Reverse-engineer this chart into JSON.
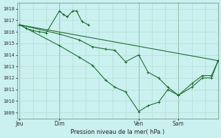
{
  "xlabel": "Pression niveau de la mer( hPa )",
  "ylim": [
    1008.5,
    1018.5
  ],
  "yticks": [
    1009,
    1010,
    1011,
    1012,
    1013,
    1014,
    1015,
    1016,
    1017,
    1018
  ],
  "bg_color": "#caf0f0",
  "grid_color": "#b0d8cc",
  "line_color": "#1a6b2a",
  "axis_color": "#5a8a6a",
  "x_tick_labels": [
    "Jeu",
    "Dim",
    "Ven",
    "Sam"
  ],
  "x_tick_positions": [
    0,
    30,
    90,
    120
  ],
  "x_vlines": [
    0,
    30,
    90,
    120
  ],
  "xlim": [
    -2,
    150
  ],
  "series1_x": [
    0,
    5,
    10,
    15,
    20,
    30,
    33,
    36,
    40,
    43,
    47,
    52
  ],
  "series1_y": [
    1016.6,
    1016.3,
    1016.1,
    1016.0,
    1015.9,
    1017.8,
    1017.5,
    1017.3,
    1017.8,
    1017.8,
    1016.9,
    1016.6
  ],
  "series2_x": [
    0,
    30,
    45,
    55,
    65,
    72,
    80,
    90,
    97,
    105,
    112,
    120,
    130,
    138,
    145,
    150
  ],
  "series2_y": [
    1016.6,
    1015.8,
    1015.3,
    1014.7,
    1014.5,
    1014.4,
    1013.4,
    1014.0,
    1012.5,
    1012.0,
    1011.2,
    1010.5,
    1011.5,
    1012.2,
    1012.2,
    1013.5
  ],
  "series3_x": [
    0,
    30,
    45,
    55,
    65,
    72,
    80,
    90,
    97,
    105,
    112,
    120,
    130,
    138,
    145,
    150
  ],
  "series3_y": [
    1016.6,
    1014.8,
    1013.8,
    1013.1,
    1011.8,
    1011.2,
    1010.8,
    1009.1,
    1009.6,
    1009.9,
    1011.0,
    1010.5,
    1011.2,
    1012.0,
    1012.0,
    1013.5
  ],
  "trend_x": [
    0,
    150
  ],
  "trend_y": [
    1016.6,
    1013.5
  ],
  "figsize": [
    3.2,
    2.0
  ],
  "dpi": 100
}
